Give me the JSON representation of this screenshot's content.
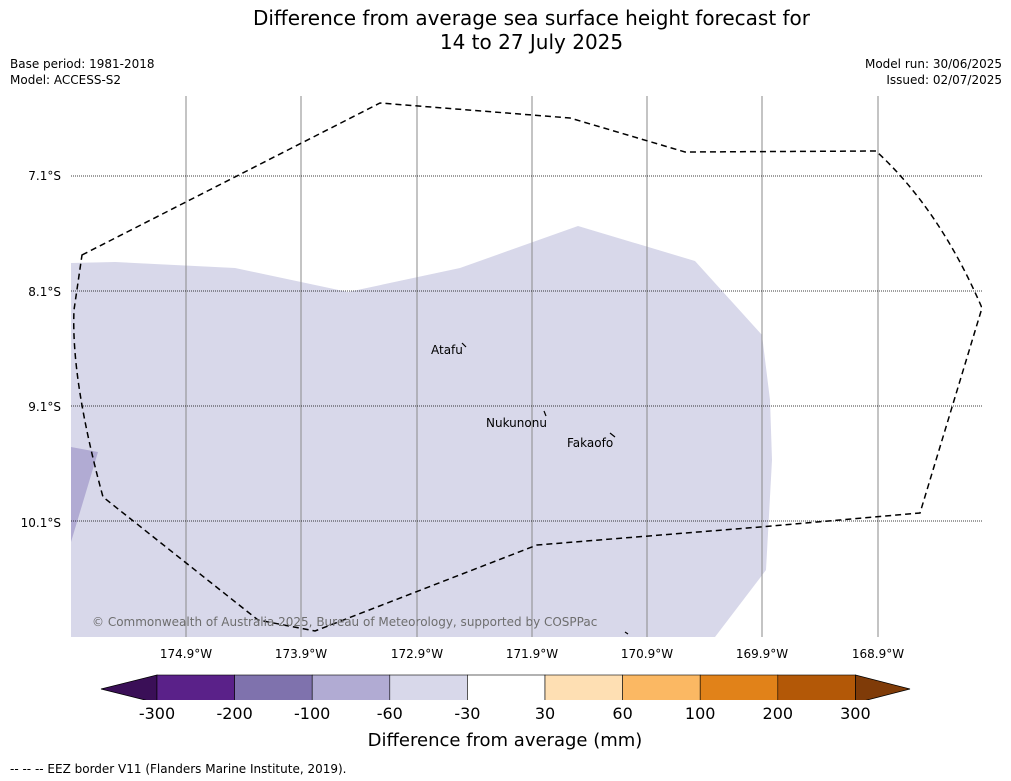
{
  "title_line1": "Difference from average sea surface height forecast for",
  "title_line2": "14 to 27 July 2025",
  "meta": {
    "base_period": "Base period: 1981-2018",
    "model": "Model: ACCESS-S2",
    "model_run": "Model run: 30/06/2025",
    "issued": "Issued: 02/07/2025"
  },
  "map": {
    "lat_labels": [
      "7.1°S",
      "8.1°S",
      "9.1°S",
      "10.1°S"
    ],
    "lon_labels": [
      "174.9°W",
      "173.9°W",
      "172.9°W",
      "171.9°W",
      "170.9°W",
      "169.9°W",
      "168.9°W"
    ],
    "islands": [
      "Atafu",
      "Nukunonu",
      "Fakaofo"
    ],
    "copyright": "© Commonwealth of Australia 2025, Bureau of Meteorology, supported by COSPPac",
    "field_color": "#d8d8ea",
    "patch_color": "#b1abd3",
    "border_style": "dashed"
  },
  "colorbar": {
    "labels": [
      "-300",
      "-200",
      "-100",
      "-60",
      "-30",
      "30",
      "60",
      "100",
      "200",
      "300"
    ],
    "colors": [
      "#3a0f57",
      "#5a2189",
      "#7f72ad",
      "#b1abd3",
      "#d8d8ea",
      "#ffffff",
      "#fedfb3",
      "#fbb863",
      "#e18219",
      "#b35807",
      "#7f3b08"
    ],
    "title": "Difference from average (mm)"
  },
  "footer": "--  --  -- EEZ border V11 (Flanders Marine Institute, 2019)."
}
